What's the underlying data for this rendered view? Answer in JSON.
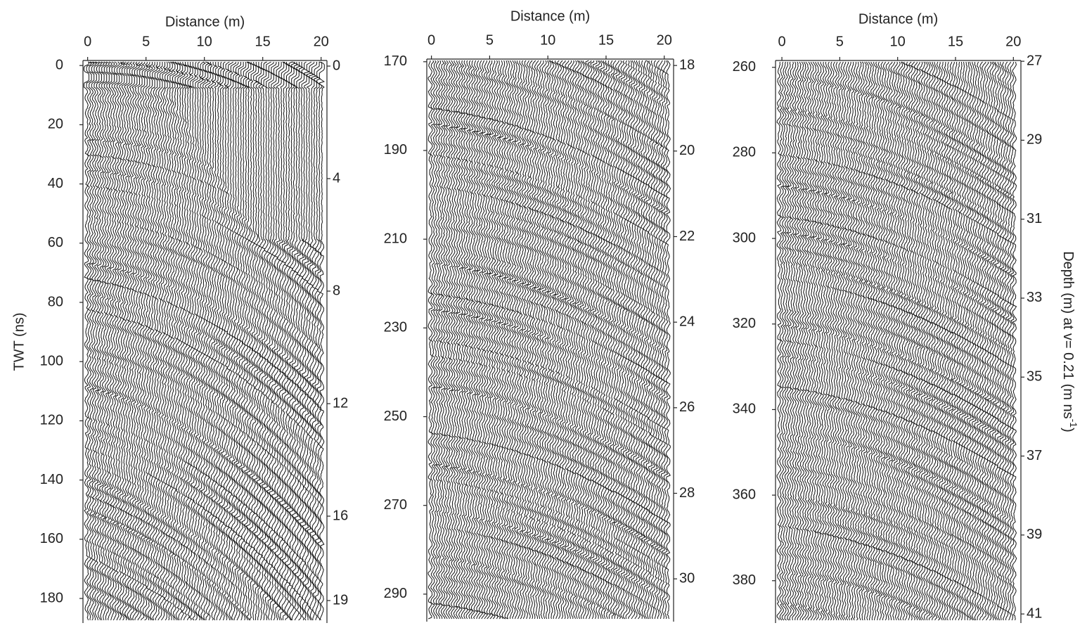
{
  "chart_data": [
    {
      "type": "radargram",
      "xlabel": "Distance (m)",
      "ylabel": "TWT (ns)",
      "xlim": [
        -0.4,
        20.5
      ],
      "xticks": [
        0,
        5,
        10,
        15,
        20
      ],
      "ylim": [
        -1.7,
        188.3
      ],
      "yticks": [
        0,
        20,
        40,
        60,
        80,
        100,
        120,
        140,
        160,
        180
      ],
      "y2lim": [
        -0.2,
        19.8
      ],
      "y2ticks": [
        0,
        4,
        8,
        12,
        16,
        19
      ]
    },
    {
      "type": "radargram",
      "xlabel": "Distance (m)",
      "xlim": [
        -0.4,
        20.8
      ],
      "xticks": [
        0,
        5,
        10,
        15,
        20
      ],
      "ylim": [
        169.4,
        296.2
      ],
      "yticks": [
        170,
        190,
        210,
        230,
        250,
        270,
        290
      ],
      "y2lim": [
        17.85,
        31.0
      ],
      "y2ticks": [
        18,
        20,
        22,
        24,
        26,
        28,
        30
      ]
    },
    {
      "type": "radargram",
      "xlabel": "Distance (m)",
      "y2label": {
        "text": "Depth (m) at v= 0.21 (m ns",
        "sup": "-1",
        "tail": ")"
      },
      "xlim": [
        -0.55,
        20.65
      ],
      "xticks": [
        0,
        5,
        10,
        15,
        20
      ],
      "ylim": [
        258.4,
        389.9
      ],
      "yticks": [
        260,
        280,
        300,
        320,
        340,
        360,
        380
      ],
      "y2lim": [
        26.98,
        41.23
      ],
      "y2ticks": [
        27,
        29,
        31,
        33,
        35,
        37,
        39,
        41
      ]
    }
  ]
}
